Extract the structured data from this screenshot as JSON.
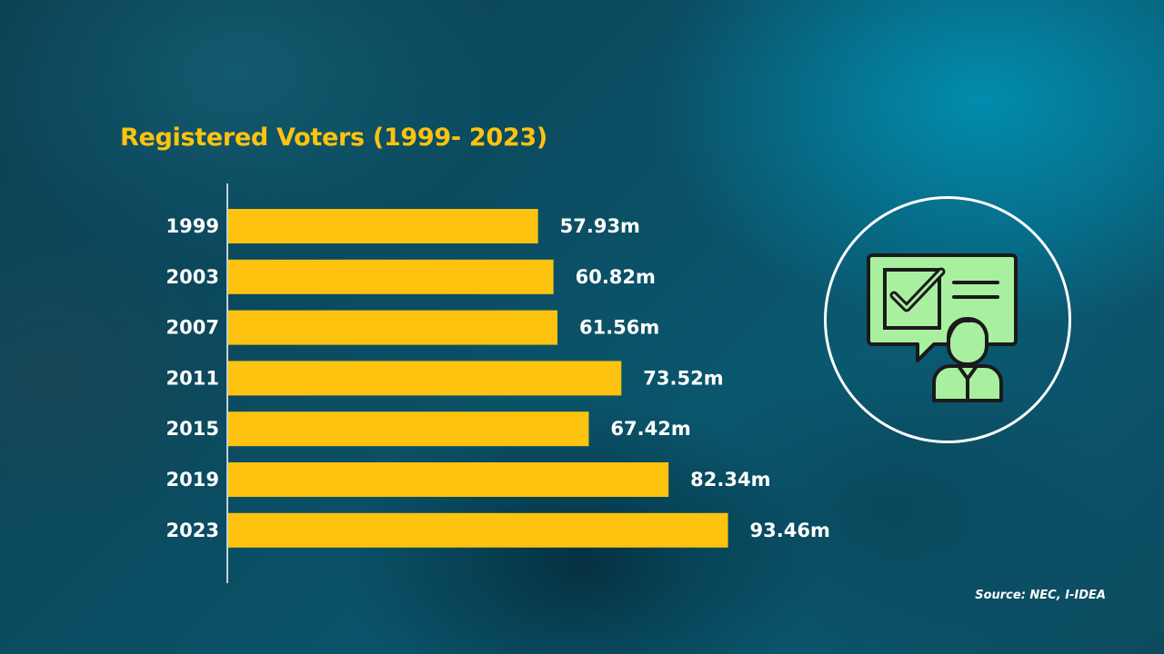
{
  "colors": {
    "bar": "#fdc30f",
    "title": "#fdc30f",
    "text": "#ffffff",
    "icon_fill": "#a8f0a0",
    "icon_stroke": "#1a1a1a"
  },
  "icon": "voter-ballot-icon",
  "source": "Source: NEC, I-IDEA",
  "chart_data": {
    "type": "bar",
    "orientation": "horizontal",
    "title": "Registered Voters (1999- 2023)",
    "categories": [
      "1999",
      "2003",
      "2007",
      "2011",
      "2015",
      "2019",
      "2023"
    ],
    "values": [
      57.93,
      60.82,
      61.56,
      73.52,
      67.42,
      82.34,
      93.46
    ],
    "value_labels": [
      "57.93m",
      "60.82m",
      "61.56m",
      "73.52m",
      "67.42m",
      "82.34m",
      "93.46m"
    ],
    "unit": "m",
    "xlabel": "",
    "ylabel": "",
    "xlim": [
      0,
      100
    ],
    "grid": false,
    "legend": "none"
  }
}
